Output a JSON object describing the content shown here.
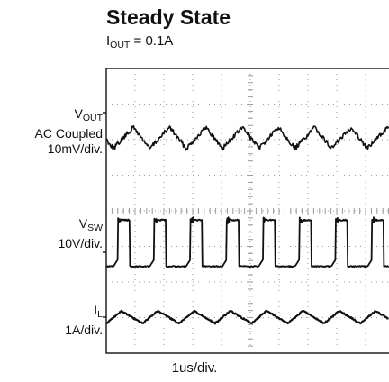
{
  "title": "Steady State",
  "subtitle": {
    "prefix": "I",
    "sub": "OUT",
    "rest": " = 0.1A"
  },
  "xlabel": "1us/div.",
  "colors": {
    "trace": "#111111",
    "grid": "#9a9a9a",
    "frame": "#222222"
  },
  "chart_data": {
    "type": "line",
    "title": "Steady State",
    "subtitle": "IOUT = 0.1A",
    "xlabel": "1us/div.",
    "grid": true,
    "x_divisions": 10,
    "y_divisions": 8,
    "period_divisions": 1.26,
    "series": [
      {
        "name": "VOUT",
        "label_lines": [
          {
            "main": "V",
            "sub": "OUT"
          },
          {
            "main": "AC Coupled"
          },
          {
            "main": "10mV/div."
          }
        ],
        "scale": "10mV/div.",
        "coupling": "AC",
        "waveform": "sawtooth",
        "peak_to_peak_div": 0.6
      },
      {
        "name": "VSW",
        "label_lines": [
          {
            "main": "V",
            "sub": "SW"
          },
          {
            "main": "10V/div."
          }
        ],
        "scale": "10V/div.",
        "waveform": "square",
        "peak_to_peak_div": 1.3
      },
      {
        "name": "IL",
        "label_lines": [
          {
            "main": "I",
            "sub": "L"
          },
          {
            "main": "1A/div."
          }
        ],
        "scale": "1A/div.",
        "waveform": "triangle",
        "peak_to_peak_div": 0.35
      }
    ]
  }
}
